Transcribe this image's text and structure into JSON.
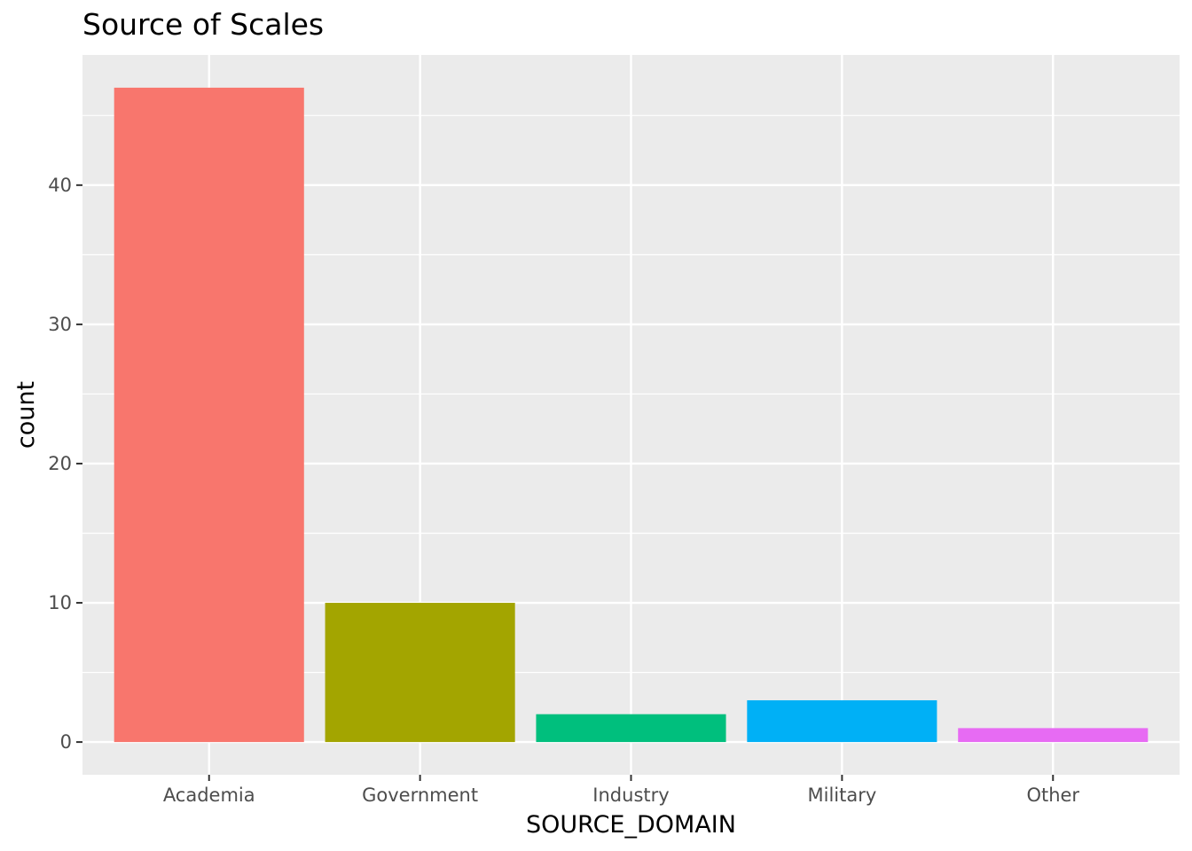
{
  "chart_data": {
    "type": "bar",
    "title": "Source of Scales",
    "xlabel": "SOURCE_DOMAIN",
    "ylabel": "count",
    "categories": [
      "Academia",
      "Government",
      "Industry",
      "Military",
      "Other"
    ],
    "values": [
      47,
      10,
      2,
      3,
      1
    ],
    "colors": [
      "#F8766D",
      "#A3A500",
      "#00BF7D",
      "#00B0F6",
      "#E76BF3"
    ],
    "ylim": [
      -2.35,
      49.35
    ],
    "yticks": [
      0,
      10,
      20,
      30,
      40
    ],
    "ytick_labels": [
      "0",
      "10",
      "20",
      "30",
      "40"
    ],
    "grid": true,
    "panel_background": "#EBEBEB",
    "legend": "none"
  }
}
